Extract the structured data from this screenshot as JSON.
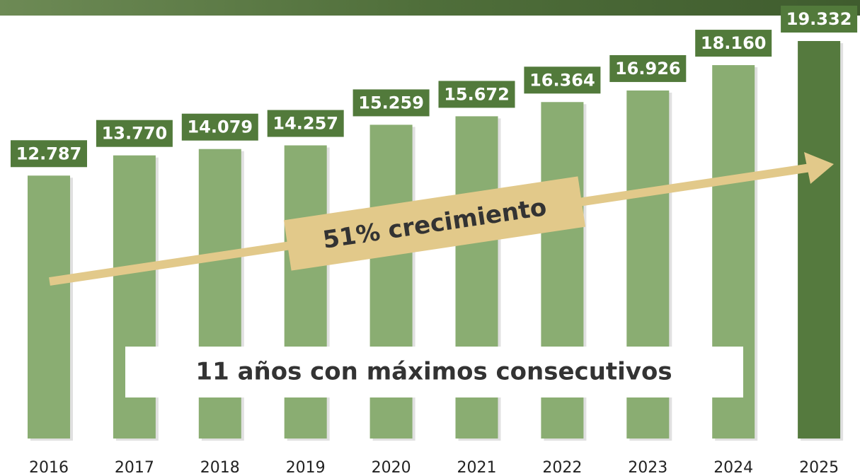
{
  "chart_data": {
    "type": "bar",
    "categories": [
      "2016",
      "2017",
      "2018",
      "2019",
      "2020",
      "2021",
      "2022",
      "2023",
      "2024",
      "2025"
    ],
    "values": [
      12787,
      13770,
      14079,
      14257,
      15259,
      15672,
      16364,
      16926,
      18160,
      19332
    ],
    "value_labels": [
      "12.787",
      "13.770",
      "14.079",
      "14.257",
      "15.259",
      "15.672",
      "16.364",
      "16.926",
      "18.160",
      "19.332"
    ],
    "colors": [
      "#8aad72",
      "#8aad72",
      "#8aad72",
      "#8aad72",
      "#8aad72",
      "#8aad72",
      "#8aad72",
      "#8aad72",
      "#8aad72",
      "#557a3e"
    ],
    "label_color": "#527a3b",
    "annotations": [
      "51% crecimiento",
      "11 años con máximos consecutivos"
    ]
  }
}
